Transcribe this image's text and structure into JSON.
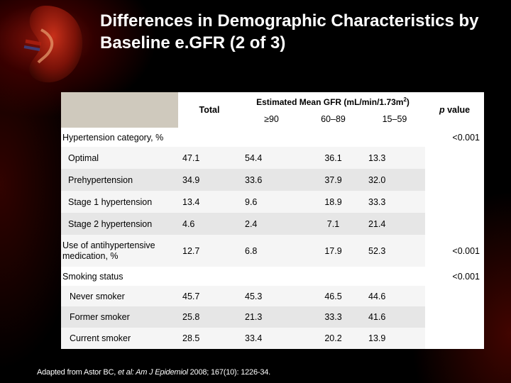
{
  "slide": {
    "title": "Differences in Demographic Characteristics by Baseline e.GFR  (2 of 3)",
    "footnote_prefix": "Adapted from Astor BC, ",
    "footnote_et_al": "et al:",
    "footnote_journal": " Am J Epidemiol",
    "footnote_suffix": " 2008; 167(10): 1226-34."
  },
  "table": {
    "header": {
      "total": "Total",
      "group_label_main": "Estimated Mean GFR (mL/min/1.73m",
      "group_label_sup": "2",
      "group_label_end": ")",
      "p_value_italic": "p",
      "p_value_rest": " value",
      "sub_columns": [
        "≥90",
        "60–89",
        "15–59"
      ]
    },
    "sections": [
      {
        "label": "Hypertension category, %",
        "p": "<0.001",
        "rows": [
          {
            "label": "Optimal",
            "total": "47.1",
            "v90": "54.4",
            "v60": "36.1",
            "v15": "13.3",
            "p": ""
          },
          {
            "label": "Prehypertension",
            "total": "34.9",
            "v90": "33.6",
            "v60": "37.9",
            "v15": "32.0",
            "p": ""
          },
          {
            "label": "Stage 1 hypertension",
            "total": "13.4",
            "v90": "9.6",
            "v60": "18.9",
            "v15": "33.3",
            "p": ""
          },
          {
            "label": "Stage 2 hypertension",
            "total": "4.6",
            "v90": "2.4",
            "v60": "7.1",
            "v15": "21.4",
            "p": ""
          },
          {
            "label": "Use of antihypertensive medication, %",
            "total": "12.7",
            "v90": "6.8",
            "v60": "17.9",
            "v15": "52.3",
            "p": "<0.001"
          }
        ]
      },
      {
        "label": "Smoking status",
        "p": "<0.001",
        "rows": [
          {
            "label": "Never smoker",
            "total": "45.7",
            "v90": "45.3",
            "v60": "46.5",
            "v15": "44.6",
            "p": ""
          },
          {
            "label": "Former smoker",
            "total": "25.8",
            "v90": "21.3",
            "v60": "33.3",
            "v15": "41.6",
            "p": ""
          },
          {
            "label": "Current smoker",
            "total": "28.5",
            "v90": "33.4",
            "v60": "20.2",
            "v15": "13.9",
            "p": ""
          }
        ]
      }
    ]
  }
}
